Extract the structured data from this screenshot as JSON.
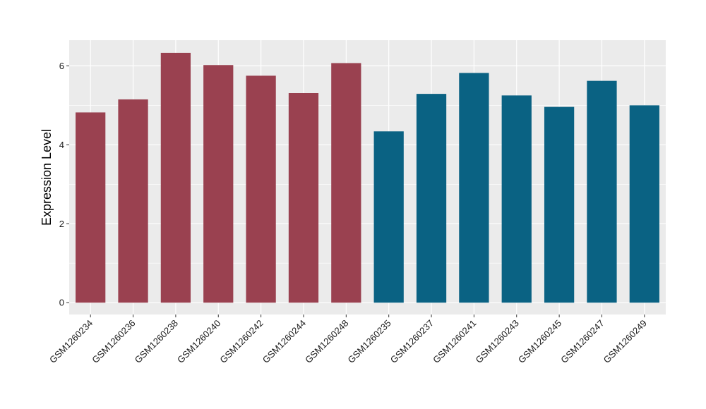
{
  "chart_data": {
    "type": "bar",
    "title": "",
    "xlabel": "",
    "ylabel": "Expression Level",
    "ylim": [
      -0.3,
      6.65
    ],
    "yticks": [
      0,
      2,
      4,
      6
    ],
    "grid": true,
    "legend": "none",
    "categories": [
      "GSM1260234",
      "GSM1260236",
      "GSM1260238",
      "GSM1260240",
      "GSM1260242",
      "GSM1260244",
      "GSM1260248",
      "GSM1260235",
      "GSM1260237",
      "GSM1260241",
      "GSM1260243",
      "GSM1260245",
      "GSM1260247",
      "GSM1260249"
    ],
    "values": [
      4.82,
      5.15,
      6.33,
      6.02,
      5.75,
      5.31,
      6.07,
      4.34,
      5.29,
      5.82,
      5.25,
      4.96,
      5.62,
      5.0
    ],
    "bar_groups": [
      0,
      0,
      0,
      0,
      0,
      0,
      0,
      1,
      1,
      1,
      1,
      1,
      1,
      1
    ],
    "group_colors": [
      "#9a4150",
      "#0a6283"
    ],
    "panel_background": "#ebebeb",
    "grid_color": "#ffffff"
  }
}
